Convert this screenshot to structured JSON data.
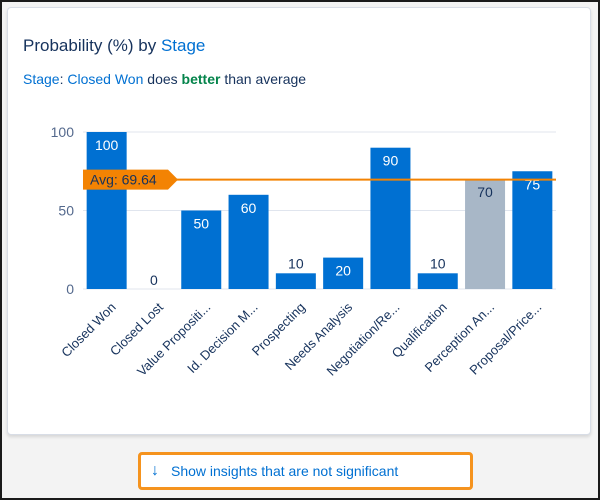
{
  "header": {
    "title_prefix": "Probability (%) by ",
    "title_link": "Stage"
  },
  "insight": {
    "field": "Stage",
    "separator": ": ",
    "value": "Closed Won",
    "text_mid": " does ",
    "emphasis": "better",
    "text_end": " than average"
  },
  "chart_data": {
    "type": "bar",
    "categories": [
      "Closed Won",
      "Closed Lost",
      "Value Propositi...",
      "Id. Decision M...",
      "Prospecting",
      "Needs Analysis",
      "Negotiation/Re...",
      "Qualification",
      "Perception An...",
      "Proposal/Price..."
    ],
    "values": [
      100,
      0,
      50,
      60,
      10,
      20,
      90,
      10,
      70,
      75
    ],
    "ylim": [
      0,
      100
    ],
    "yticks": [
      0,
      50,
      100
    ],
    "average": 69.64,
    "average_label": "Avg: 69.64",
    "grid": true,
    "colors": {
      "bar": "#0070d2",
      "muted_bar": "#a8b7c7",
      "average": "#f38303"
    },
    "muted_index": 8
  },
  "footer": {
    "icon": "arrow-down-icon",
    "label": "Show insights that are not significant"
  }
}
